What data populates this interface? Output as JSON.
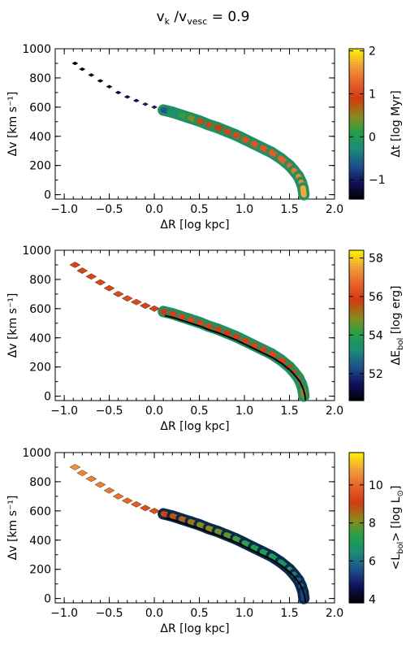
{
  "title": {
    "v1": "v",
    "s1": "k",
    "slash": " /v",
    "s2": "vesc",
    "eq": " = ",
    "value": "0.9"
  },
  "chart_data": [
    {
      "type": "scatter",
      "xlabel": "ΔR [log kpc]",
      "ylabel": "Δv [km s⁻¹]",
      "xlim": [
        -1.1,
        2.0
      ],
      "ylim": [
        -30,
        1000
      ],
      "xticks": [
        "−1.0",
        "−0.5",
        "0.0",
        "0.5",
        "1.0",
        "1.5",
        "2.0"
      ],
      "yticks": [
        "0",
        "200",
        "400",
        "600",
        "800",
        "1000"
      ],
      "colorbar": {
        "label": "Δt [log Myr]",
        "range": [
          -1.45,
          2.05
        ],
        "ticks": [
          "−1",
          "0",
          "1",
          "2"
        ],
        "tick_values": [
          -1,
          0,
          1,
          2
        ]
      },
      "track_color_values": [
        -1.4,
        -1.35,
        -1.3,
        -1.25,
        -1.2,
        -1.15,
        -1.1,
        -1.0,
        -0.6,
        -0.2,
        0.2,
        0.5,
        0.8,
        0.9,
        1.0,
        1.05,
        1.1,
        1.15,
        1.2,
        1.25,
        1.3,
        1.4,
        1.5,
        1.7,
        1.9
      ]
    },
    {
      "type": "scatter",
      "xlabel": "ΔR [log kpc]",
      "ylabel": "Δv [km s⁻¹]",
      "xlim": [
        -1.1,
        2.0
      ],
      "ylim": [
        -30,
        1000
      ],
      "xticks": [
        "−1.0",
        "−0.5",
        "0.0",
        "0.5",
        "1.0",
        "1.5",
        "2.0"
      ],
      "yticks": [
        "0",
        "200",
        "400",
        "600",
        "800",
        "1000"
      ],
      "colorbar": {
        "label": "ΔE_bol [log erg]",
        "label_main": "ΔE",
        "label_sub": "bol",
        "label_unit": " [log erg]",
        "range": [
          50.6,
          58.4
        ],
        "ticks": [
          "52",
          "54",
          "56",
          "58"
        ],
        "tick_values": [
          52,
          54,
          56,
          58
        ]
      },
      "track_color_values": [
        56.0,
        56.0,
        56.1,
        56.1,
        56.2,
        56.2,
        56.1,
        56.0,
        55.8,
        55.9,
        56.0,
        56.1,
        56.0,
        55.9,
        55.8,
        55.9,
        56.0,
        56.0,
        56.1,
        56.0,
        55.8,
        55.6,
        55.4,
        55.0,
        54.5
      ]
    },
    {
      "type": "scatter",
      "xlabel": "ΔR [log kpc]",
      "ylabel": "Δv [km s⁻¹]",
      "xlim": [
        -1.1,
        2.0
      ],
      "ylim": [
        -30,
        1000
      ],
      "xticks": [
        "−1.0",
        "−0.5",
        "0.0",
        "0.5",
        "1.0",
        "1.5",
        "2.0"
      ],
      "yticks": [
        "0",
        "200",
        "400",
        "600",
        "800",
        "1000"
      ],
      "colorbar": {
        "label": "<L_bol> [log L_⊙]",
        "label_main": "<L",
        "label_sub": "bol",
        "label_unit": "> [log L",
        "label_sub2": "⊙",
        "label_end": "]",
        "range": [
          3.8,
          11.7
        ],
        "ticks": [
          "4",
          "6",
          "8",
          "10"
        ],
        "tick_values": [
          4,
          6,
          8,
          10
        ]
      },
      "track_color_values": [
        10.6,
        10.5,
        10.4,
        10.3,
        10.2,
        10.0,
        9.8,
        9.5,
        9.0,
        8.8,
        8.6,
        8.4,
        8.2,
        8.0,
        7.8,
        7.6,
        7.4,
        7.2,
        7.0,
        6.8,
        6.6,
        6.2,
        5.8,
        5.4,
        5.0
      ]
    }
  ],
  "track": {
    "x": [
      -0.88,
      -0.8,
      -0.7,
      -0.6,
      -0.5,
      -0.4,
      -0.3,
      -0.2,
      -0.1,
      0.0,
      0.1,
      0.2,
      0.3,
      0.4,
      0.5,
      0.6,
      0.7,
      0.8,
      0.9,
      1.0,
      1.1,
      1.2,
      1.3,
      1.4,
      1.5,
      1.55,
      1.6,
      1.63,
      1.65,
      1.66
    ],
    "y": [
      900,
      860,
      820,
      780,
      740,
      700,
      670,
      645,
      620,
      600,
      580,
      565,
      545,
      525,
      505,
      480,
      460,
      435,
      410,
      380,
      350,
      320,
      290,
      250,
      200,
      165,
      125,
      85,
      45,
      0
    ]
  },
  "colormap": [
    "#000000",
    "#10105a",
    "#1e4f8c",
    "#1a8a7a",
    "#22a048",
    "#8a8a1e",
    "#d23a10",
    "#e8602a",
    "#f0a038",
    "#fff000"
  ]
}
